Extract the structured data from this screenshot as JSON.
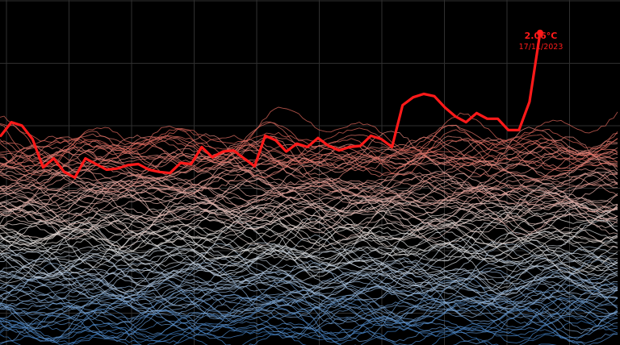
{
  "chart_data": {
    "type": "line",
    "title": "",
    "xlabel": "",
    "ylabel": "",
    "grid": true,
    "x_domain": [
      1,
      52
    ],
    "y_domain": [
      -0.7,
      2.35
    ],
    "highlight_series": {
      "name": "",
      "color": "#ff1a1a",
      "x": [
        1,
        2,
        3,
        4,
        5,
        6,
        7,
        8,
        9,
        10,
        11,
        12,
        13,
        14,
        15,
        16,
        17,
        18,
        19,
        20,
        21,
        22,
        23,
        24,
        25,
        26,
        27,
        28,
        29,
        30,
        31,
        32,
        33,
        34,
        35,
        36,
        37,
        38,
        39,
        40,
        41,
        42,
        43,
        44,
        45,
        46,
        47,
        48,
        49,
        50,
        51,
        52
      ],
      "values": [
        1.15,
        1.27,
        1.24,
        1.12,
        0.87,
        0.95,
        0.83,
        0.78,
        0.95,
        0.9,
        0.85,
        0.86,
        0.89,
        0.9,
        0.85,
        0.83,
        0.82,
        0.91,
        0.9,
        1.05,
        0.96,
        1.01,
        1.02,
        0.95,
        0.88,
        1.15,
        1.11,
        1.01,
        1.08,
        1.05,
        1.13,
        1.06,
        1.02,
        1.05,
        1.06,
        1.15,
        1.12,
        1.05,
        1.42,
        1.49,
        1.52,
        1.5,
        1.4,
        1.32,
        1.27,
        1.35,
        1.3,
        1.3,
        1.2,
        1.2,
        1.45,
        2.06
      ]
    },
    "annotation": {
      "value": "2.06°C",
      "date": "17/11/2023"
    }
  },
  "colors": {
    "background": "#000000",
    "grid": "#2f2f2f",
    "highlight": "#ff1a1a",
    "cold": "#3d7dc4",
    "neutral": "#e6e2de",
    "warm": "#e0665a"
  }
}
